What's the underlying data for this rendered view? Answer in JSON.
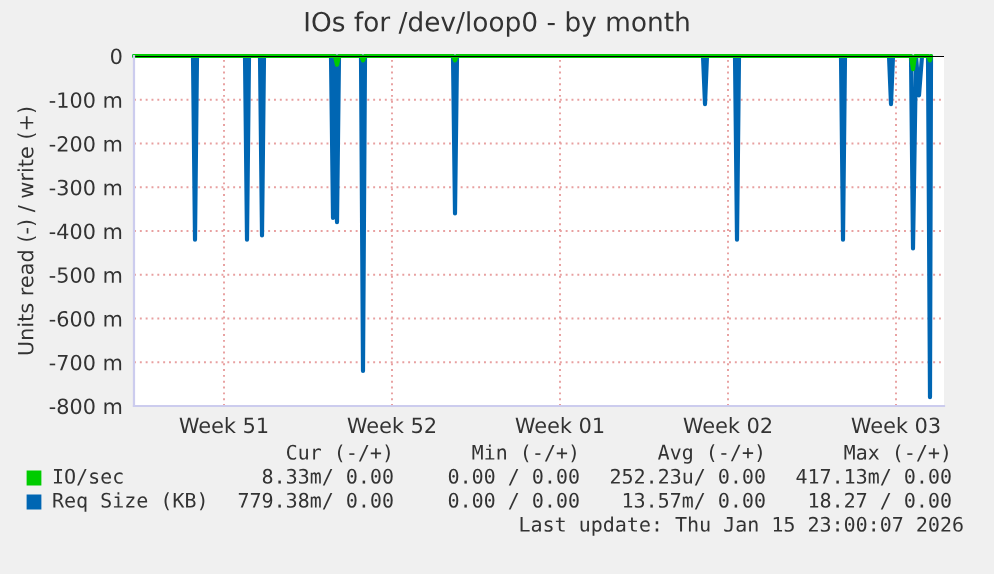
{
  "chart_data": {
    "type": "line",
    "title": "IOs for /dev/loop0 - by month",
    "ylabel": "Units read (-) / write (+)",
    "xlim": [
      "2025-12-13T18:00",
      "2026-01-16T12:00"
    ],
    "xticks": [
      {
        "value": "2025-12-17T12:00",
        "label": "Week 51"
      },
      {
        "value": "2025-12-24T12:00",
        "label": "Week 52"
      },
      {
        "value": "2025-12-31T12:00",
        "label": "Week 01"
      },
      {
        "value": "2026-01-07T12:00",
        "label": "Week 02"
      },
      {
        "value": "2026-01-14T12:00",
        "label": "Week 03"
      }
    ],
    "ylim": [
      -800,
      0
    ],
    "yticks": [
      {
        "value": 0,
        "label": "0"
      },
      {
        "value": -100,
        "label": "-100 m"
      },
      {
        "value": -200,
        "label": "-200 m"
      },
      {
        "value": -300,
        "label": "-300 m"
      },
      {
        "value": -400,
        "label": "-400 m"
      },
      {
        "value": -500,
        "label": "-500 m"
      },
      {
        "value": -600,
        "label": "-600 m"
      },
      {
        "value": -700,
        "label": "-700 m"
      },
      {
        "value": -800,
        "label": "-800 m"
      }
    ],
    "grid": true,
    "legend": "bottom",
    "series": [
      {
        "name": "Req Size (KB)",
        "color": "#0066b3",
        "x": [
          "2025-12-13T18:00",
          "2025-12-16T05:00",
          "2025-12-16T07:00",
          "2025-12-16T09:00",
          "2025-12-18T09:00",
          "2025-12-18T11:00",
          "2025-12-18T13:00",
          "2025-12-19T00:00",
          "2025-12-19T02:00",
          "2025-12-19T04:00",
          "2025-12-21T23:00",
          "2025-12-22T01:00",
          "2025-12-22T03:00",
          "2025-12-22T05:00",
          "2025-12-22T07:00",
          "2025-12-23T05:00",
          "2025-12-23T07:00",
          "2025-12-23T09:00",
          "2025-12-27T01:00",
          "2025-12-27T03:00",
          "2025-12-27T05:00",
          "2026-01-06T11:00",
          "2026-01-06T13:00",
          "2026-01-06T15:00",
          "2026-01-07T19:00",
          "2026-01-07T21:00",
          "2026-01-07T23:00",
          "2026-01-12T05:00",
          "2026-01-12T07:00",
          "2026-01-12T09:00",
          "2026-01-14T05:00",
          "2026-01-14T07:00",
          "2026-01-14T09:00",
          "2026-01-15T03:00",
          "2026-01-15T05:00",
          "2026-01-15T08:00",
          "2026-01-15T11:00",
          "2026-01-15T14:00",
          "2026-01-15T20:00",
          "2026-01-15T22:00",
          "2026-01-15T23:00"
        ],
        "values": [
          0,
          0,
          -420,
          0,
          0,
          -420,
          0,
          0,
          -410,
          0,
          0,
          -370,
          0,
          -380,
          0,
          0,
          -720,
          0,
          0,
          -360,
          0,
          0,
          -110,
          0,
          0,
          -420,
          0,
          0,
          -420,
          0,
          0,
          -110,
          0,
          0,
          -440,
          0,
          -90,
          0,
          0,
          -780,
          0
        ]
      },
      {
        "name": "IO/sec",
        "color": "#00cc00",
        "x": [
          "2025-12-13T18:00",
          "2025-12-22T03:00",
          "2025-12-22T05:00",
          "2025-12-22T07:00",
          "2025-12-23T05:00",
          "2025-12-23T07:00",
          "2025-12-23T09:00",
          "2025-12-27T01:00",
          "2025-12-27T03:00",
          "2025-12-27T05:00",
          "2026-01-15T03:00",
          "2026-01-15T05:00",
          "2026-01-15T07:00",
          "2026-01-15T20:00",
          "2026-01-15T22:00",
          "2026-01-15T23:00"
        ],
        "values": [
          0,
          0,
          -20,
          0,
          0,
          -10,
          0,
          0,
          -10,
          0,
          0,
          -30,
          0,
          0,
          -10,
          0
        ]
      }
    ],
    "annotations": [
      "Cur (-/+)",
      "Min (-/+)",
      "Avg (-/+)",
      "Max (-/+)",
      "8.33m/ 0.00",
      "0.00 / 0.00",
      "252.23u/ 0.00",
      "417.13m/ 0.00",
      "779.38m/ 0.00",
      "0.00 / 0.00",
      "13.57m/ 0.00",
      "18.27 / 0.00",
      "Last update: Thu Jan 15 23:00:07 2026"
    ]
  }
}
